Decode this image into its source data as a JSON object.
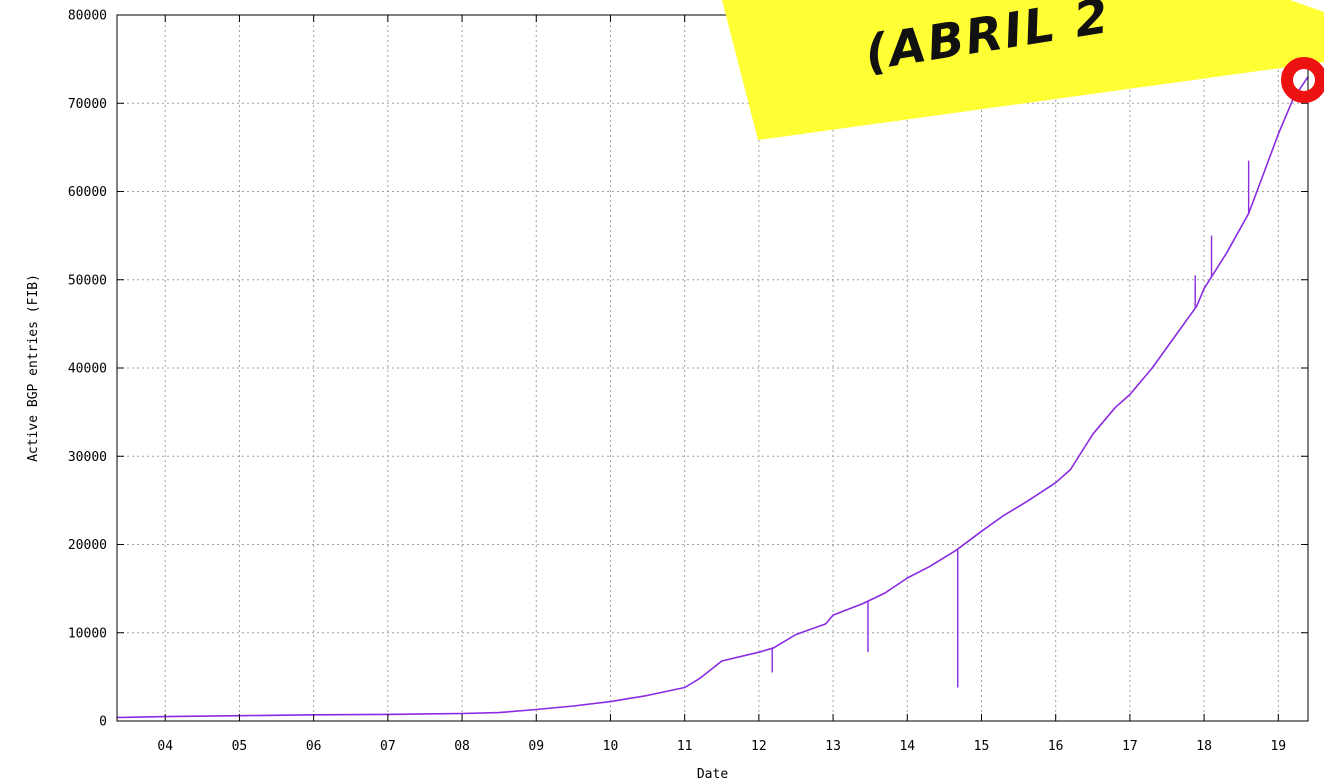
{
  "chart_data": {
    "type": "line",
    "title": "",
    "xlabel": "Date",
    "ylabel": "Active BGP entries (FIB)",
    "xlim": [
      3.35,
      19.4
    ],
    "ylim": [
      0,
      80000
    ],
    "x_ticks": [
      "04",
      "05",
      "06",
      "07",
      "08",
      "09",
      "10",
      "11",
      "12",
      "13",
      "14",
      "15",
      "16",
      "17",
      "18",
      "19"
    ],
    "y_ticks": [
      "0",
      "10000",
      "20000",
      "30000",
      "40000",
      "50000",
      "60000",
      "70000",
      "80000"
    ],
    "grid": true,
    "series": [
      {
        "x": [
          3.35,
          4.0,
          5.0,
          6.0,
          7.0,
          7.5,
          8.0,
          8.5,
          9.0,
          9.5,
          10.0,
          10.5,
          11.0,
          11.2,
          11.5,
          12.0,
          12.2,
          12.5,
          12.9,
          13.0,
          13.4,
          13.7,
          14.0,
          14.3,
          14.65,
          15.0,
          15.3,
          15.6,
          16.0,
          16.2,
          16.5,
          16.8,
          17.0,
          17.3,
          17.6,
          17.9,
          18.0,
          18.3,
          18.6,
          18.8,
          19.0,
          19.2,
          19.4
        ],
        "y": [
          400,
          500,
          600,
          700,
          750,
          800,
          850,
          950,
          1300,
          1700,
          2200,
          2900,
          3800,
          4800,
          6800,
          7800,
          8300,
          9800,
          11000,
          12000,
          13300,
          14500,
          16200,
          17500,
          19300,
          21500,
          23300,
          24800,
          27000,
          28500,
          32500,
          35500,
          37000,
          40000,
          43500,
          47000,
          49000,
          53000,
          57500,
          62000,
          66500,
          70500,
          73000
        ],
        "spikes": [
          {
            "x": 12.18,
            "y": 5500
          },
          {
            "x": 13.47,
            "y": 7800
          },
          {
            "x": 14.68,
            "y": 3800
          },
          {
            "x": 17.88,
            "y": 50500
          },
          {
            "x": 18.1,
            "y": 55000
          },
          {
            "x": 18.6,
            "y": 63500
          }
        ],
        "color": "#8a2be2"
      }
    ],
    "annotations": {
      "sticky_note_text": "(ABRIL 2",
      "sticky_note_color": "#ffff33",
      "marker_color": "#ee1111"
    }
  }
}
